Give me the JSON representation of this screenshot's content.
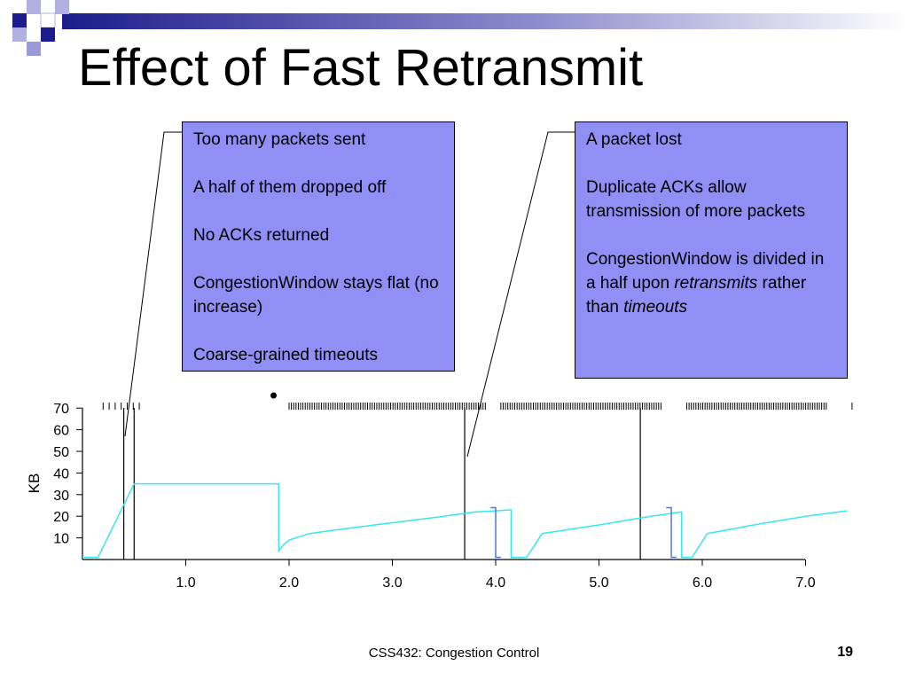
{
  "slide": {
    "title": "Effect of Fast Retransmit",
    "footer": "CSS432: Congestion Control",
    "page_number": "19"
  },
  "callouts": {
    "left": {
      "lines": [
        "Too many packets sent",
        "A half of them dropped off",
        "No ACKs returned",
        "CongestionWindow stays flat (no increase)",
        "Coarse-grained timeouts"
      ]
    },
    "right": {
      "line1": "A packet lost",
      "line2": "Duplicate ACKs allow transmission of more packets",
      "line3_part1": "CongestionWindow is divided in a half upon ",
      "line3_em1": "retransmits",
      "line3_part2": " rather than ",
      "line3_em2": "timeouts"
    }
  },
  "colors": {
    "window_line": "#33e8f0",
    "retransmit_line": "#5577cc",
    "callout_fill": "#8f8ff6",
    "deco_dark": "#1c1c8c",
    "deco_light": "#9a9adb"
  },
  "chart_data": {
    "type": "line",
    "ylabel": "KB",
    "xlim": [
      0.0,
      7.0
    ],
    "ylim": [
      0,
      70
    ],
    "x_ticks": [
      "1.0",
      "2.0",
      "3.0",
      "4.0",
      "5.0",
      "6.0",
      "7.0"
    ],
    "y_ticks": [
      "70",
      "60",
      "50",
      "40",
      "30",
      "20",
      "10"
    ],
    "series": [
      {
        "points": [
          [
            0.0,
            1
          ],
          [
            0.15,
            1
          ],
          [
            0.5,
            35
          ],
          [
            1.9,
            35
          ],
          [
            1.9,
            4
          ],
          [
            1.95,
            7
          ],
          [
            2.0,
            9
          ],
          [
            2.2,
            12
          ],
          [
            2.5,
            14
          ],
          [
            3.0,
            17
          ],
          [
            3.5,
            20
          ],
          [
            3.8,
            22
          ],
          [
            4.0,
            22.5
          ],
          [
            4.15,
            23
          ],
          [
            4.15,
            1
          ],
          [
            4.3,
            1
          ],
          [
            4.45,
            12
          ],
          [
            5.0,
            16
          ],
          [
            5.5,
            20
          ],
          [
            5.8,
            22
          ],
          [
            5.8,
            1
          ],
          [
            5.9,
            1
          ],
          [
            6.05,
            12
          ],
          [
            6.5,
            16
          ],
          [
            7.0,
            20
          ],
          [
            7.4,
            22.5
          ]
        ]
      }
    ],
    "retransmit_marks": [
      [
        [
          3.95,
          24
        ],
        [
          4.0,
          24
        ],
        [
          4.0,
          1
        ],
        [
          4.05,
          1
        ]
      ],
      [
        [
          5.65,
          24
        ],
        [
          5.7,
          24
        ],
        [
          5.7,
          1
        ],
        [
          5.75,
          1
        ]
      ]
    ],
    "timeout_lines_x": [
      0.4,
      0.5,
      3.7,
      5.4
    ],
    "tick_groups": [
      {
        "start": 0.2,
        "end": 0.55,
        "count": 7
      },
      {
        "start": 2.0,
        "end": 3.9,
        "count": 86
      },
      {
        "start": 4.05,
        "end": 5.6,
        "count": 70
      },
      {
        "start": 5.85,
        "end": 7.2,
        "count": 62
      },
      {
        "start": 7.45,
        "end": 7.45,
        "count": 1
      }
    ],
    "dot_x": 1.85
  }
}
